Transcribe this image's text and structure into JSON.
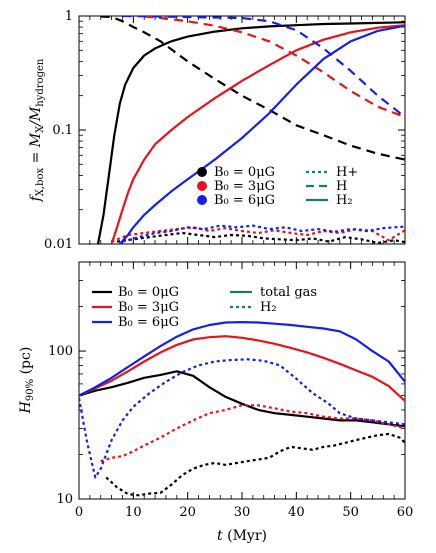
{
  "colors": {
    "black": "#000000",
    "red": "#e8121b",
    "blue": "#1420e8"
  },
  "chart_data": [
    {
      "type": "line",
      "panel": "top",
      "ylabel": "f_X,box = M_X/M_hydrogen",
      "ylabel_parts": {
        "main": "f",
        "sub1": "X,box",
        "eq": " = M",
        "sub2": "X",
        "slash": "/M",
        "sub3": "hydrogen"
      },
      "yscale": "log",
      "xlim": [
        0,
        60
      ],
      "ylim": [
        0.01,
        1
      ],
      "yticks": [
        0.01,
        0.1,
        1
      ],
      "ytick_labels": [
        "0.01",
        "0.1",
        "1"
      ],
      "grid": false,
      "legend_location": "lower-right",
      "legend": {
        "color_entries": [
          {
            "color": "black",
            "label": "B₀ = 0μG"
          },
          {
            "color": "red",
            "label": "B₀ = 3μG"
          },
          {
            "color": "blue",
            "label": "B₀ = 6μG"
          }
        ],
        "style_entries": [
          {
            "style": "dotted",
            "label": "H+"
          },
          {
            "style": "dashed",
            "label": "H"
          },
          {
            "style": "solid",
            "label": "H₂"
          }
        ]
      },
      "series": [
        {
          "color": "black",
          "species": "H2",
          "style": "solid",
          "x": [
            3.5,
            4.5,
            5.5,
            6.5,
            7.5,
            8.5,
            10,
            12,
            14,
            17,
            20,
            25,
            30,
            35,
            40,
            45,
            50,
            55,
            60
          ],
          "y": [
            0.01,
            0.018,
            0.04,
            0.09,
            0.17,
            0.25,
            0.35,
            0.45,
            0.52,
            0.6,
            0.66,
            0.73,
            0.78,
            0.81,
            0.83,
            0.85,
            0.86,
            0.87,
            0.88
          ]
        },
        {
          "color": "black",
          "species": "H",
          "style": "dashed",
          "x": [
            4,
            6,
            8,
            10,
            12,
            15,
            20,
            25,
            30,
            35,
            40,
            45,
            50,
            55,
            60
          ],
          "y": [
            0.99,
            0.98,
            0.9,
            0.8,
            0.72,
            0.6,
            0.4,
            0.28,
            0.2,
            0.15,
            0.11,
            0.09,
            0.073,
            0.062,
            0.055
          ]
        },
        {
          "color": "black",
          "species": "H+",
          "style": "dotted",
          "x": [
            7,
            10,
            13,
            16,
            19,
            22,
            25,
            28,
            31,
            34,
            37,
            40,
            43,
            46,
            49,
            52,
            55,
            58,
            60
          ],
          "y": [
            0.0105,
            0.011,
            0.0115,
            0.012,
            0.0125,
            0.012,
            0.0115,
            0.012,
            0.0118,
            0.0112,
            0.011,
            0.0108,
            0.0112,
            0.0105,
            0.0115,
            0.011,
            0.0102,
            0.0108,
            0.0104
          ]
        },
        {
          "color": "red",
          "species": "H2",
          "style": "solid",
          "x": [
            6,
            7,
            8,
            9,
            10,
            12,
            14,
            17,
            20,
            25,
            30,
            35,
            40,
            45,
            50,
            55,
            60
          ],
          "y": [
            0.01,
            0.014,
            0.02,
            0.028,
            0.037,
            0.055,
            0.075,
            0.1,
            0.13,
            0.19,
            0.27,
            0.37,
            0.5,
            0.62,
            0.72,
            0.79,
            0.83
          ]
        },
        {
          "color": "red",
          "species": "H",
          "style": "dashed",
          "x": [
            12,
            15,
            20,
            25,
            30,
            35,
            40,
            45,
            50,
            55,
            60
          ],
          "y": [
            0.99,
            0.96,
            0.9,
            0.82,
            0.72,
            0.6,
            0.45,
            0.32,
            0.22,
            0.16,
            0.13
          ]
        },
        {
          "color": "red",
          "species": "H+",
          "style": "dotted",
          "x": [
            6,
            9,
            12,
            15,
            18,
            21,
            24,
            27,
            30,
            33,
            36,
            39,
            42,
            45,
            48,
            51,
            54,
            57,
            60
          ],
          "y": [
            0.0105,
            0.012,
            0.0125,
            0.013,
            0.0135,
            0.014,
            0.013,
            0.0138,
            0.013,
            0.0125,
            0.0132,
            0.0125,
            0.012,
            0.013,
            0.0125,
            0.0135,
            0.013,
            0.0108,
            0.0132
          ]
        },
        {
          "color": "blue",
          "species": "H2",
          "style": "solid",
          "x": [
            7.5,
            9,
            10,
            12,
            14,
            17,
            20,
            25,
            30,
            35,
            40,
            45,
            50,
            55,
            60
          ],
          "y": [
            0.01,
            0.012,
            0.014,
            0.018,
            0.022,
            0.029,
            0.037,
            0.055,
            0.085,
            0.14,
            0.25,
            0.42,
            0.6,
            0.74,
            0.82
          ]
        },
        {
          "color": "blue",
          "species": "H",
          "style": "dashed",
          "x": [
            8,
            15,
            20,
            25,
            30,
            35,
            40,
            45,
            50,
            55,
            60
          ],
          "y": [
            1.0,
            0.99,
            0.98,
            0.97,
            0.96,
            0.9,
            0.75,
            0.52,
            0.33,
            0.2,
            0.13
          ]
        },
        {
          "color": "blue",
          "species": "H+",
          "style": "dotted",
          "x": [
            8,
            11,
            14,
            17,
            20,
            23,
            26,
            29,
            32,
            35,
            38,
            41,
            44,
            47,
            50,
            53,
            56,
            60
          ],
          "y": [
            0.0105,
            0.0115,
            0.0125,
            0.013,
            0.014,
            0.0135,
            0.0145,
            0.014,
            0.0145,
            0.0135,
            0.014,
            0.013,
            0.0135,
            0.0128,
            0.0135,
            0.013,
            0.0138,
            0.0142
          ]
        }
      ]
    },
    {
      "type": "line",
      "panel": "bottom",
      "ylabel": "H90% (pc)",
      "ylabel_parts": {
        "main": "H",
        "sub": "90%",
        "unit": " (pc)"
      },
      "xlabel": "t (Myr)",
      "xlabel_parts": {
        "main": "t",
        "unit": " (Myr)"
      },
      "yscale": "log",
      "xlim": [
        0,
        60
      ],
      "ylim": [
        10,
        400
      ],
      "xticks": [
        0,
        10,
        20,
        30,
        40,
        50,
        60
      ],
      "xtick_labels": [
        "0",
        "10",
        "20",
        "30",
        "40",
        "50",
        "60"
      ],
      "yticks": [
        10,
        100
      ],
      "ytick_labels": [
        "10",
        "100"
      ],
      "grid": false,
      "legend_location": "top-left",
      "legend": {
        "color_entries": [
          {
            "color": "black",
            "label": "B₀ = 0μG"
          },
          {
            "color": "red",
            "label": "B₀ = 3μG"
          },
          {
            "color": "blue",
            "label": "B₀ = 6μG"
          }
        ],
        "style_entries": [
          {
            "style": "solid",
            "label": "total gas"
          },
          {
            "style": "dotted",
            "label": "H₂"
          }
        ]
      },
      "series": [
        {
          "color": "black",
          "quantity": "total gas",
          "style": "solid",
          "x": [
            0,
            3,
            6,
            9,
            12,
            15,
            18,
            21,
            24,
            27,
            30,
            33,
            36,
            39,
            42,
            45,
            48,
            51,
            54,
            57,
            60
          ],
          "y": [
            50,
            54,
            57,
            61,
            66,
            69,
            73,
            68,
            57,
            49,
            44,
            40,
            38,
            37,
            36,
            35,
            34,
            34,
            33,
            32,
            31
          ]
        },
        {
          "color": "red",
          "quantity": "total gas",
          "style": "solid",
          "x": [
            0,
            3,
            6,
            9,
            12,
            15,
            18,
            21,
            24,
            27,
            30,
            33,
            36,
            39,
            42,
            45,
            48,
            51,
            54,
            57,
            60
          ],
          "y": [
            50,
            56,
            63,
            73,
            85,
            98,
            110,
            120,
            124,
            126,
            123,
            118,
            112,
            105,
            98,
            90,
            82,
            74,
            67,
            58,
            46
          ]
        },
        {
          "color": "blue",
          "quantity": "total gas",
          "style": "solid",
          "x": [
            0,
            3,
            6,
            9,
            12,
            15,
            18,
            21,
            24,
            27,
            30,
            33,
            36,
            39,
            42,
            45,
            48,
            51,
            54,
            57,
            60
          ],
          "y": [
            50,
            57,
            66,
            78,
            92,
            108,
            125,
            140,
            150,
            156,
            157,
            156,
            153,
            150,
            146,
            142,
            136,
            120,
            100,
            85,
            62
          ]
        },
        {
          "color": "black",
          "quantity": "H2",
          "style": "dotted",
          "x": [
            5,
            7,
            9,
            11,
            13,
            15,
            17,
            19,
            21,
            23,
            25,
            27,
            29,
            31,
            33,
            35,
            37,
            39,
            41,
            43,
            45,
            47,
            49,
            51,
            53,
            55,
            57,
            59,
            60
          ],
          "y": [
            14,
            12,
            10.8,
            10.6,
            10.9,
            11,
            12.5,
            14.5,
            16,
            17,
            17.5,
            17,
            17.5,
            18,
            18.5,
            19,
            21,
            22.5,
            22,
            21.5,
            22.5,
            23,
            24,
            25,
            26,
            27,
            27.5,
            26,
            24
          ]
        },
        {
          "color": "red",
          "quantity": "H2",
          "style": "dotted",
          "x": [
            4,
            6,
            8,
            10,
            12,
            15,
            18,
            21,
            24,
            27,
            30,
            33,
            36,
            39,
            42,
            45,
            48,
            51,
            54,
            57,
            60
          ],
          "y": [
            18,
            19,
            19.5,
            21,
            23,
            26,
            30,
            34,
            38,
            40,
            43,
            43,
            41,
            39,
            38,
            36,
            35,
            35,
            34,
            32,
            30
          ]
        },
        {
          "color": "blue",
          "quantity": "H2",
          "style": "dotted",
          "x": [
            0,
            1.5,
            3,
            4,
            6,
            8,
            10,
            13,
            16,
            19,
            22,
            25,
            28,
            31,
            34,
            37,
            40,
            43,
            46,
            48,
            51,
            54,
            57,
            60
          ],
          "y": [
            48,
            24,
            14,
            16,
            25,
            34,
            42,
            52,
            62,
            72,
            80,
            85,
            87,
            88,
            86,
            80,
            65,
            52,
            44,
            38,
            35,
            34,
            33,
            32
          ]
        }
      ]
    }
  ]
}
